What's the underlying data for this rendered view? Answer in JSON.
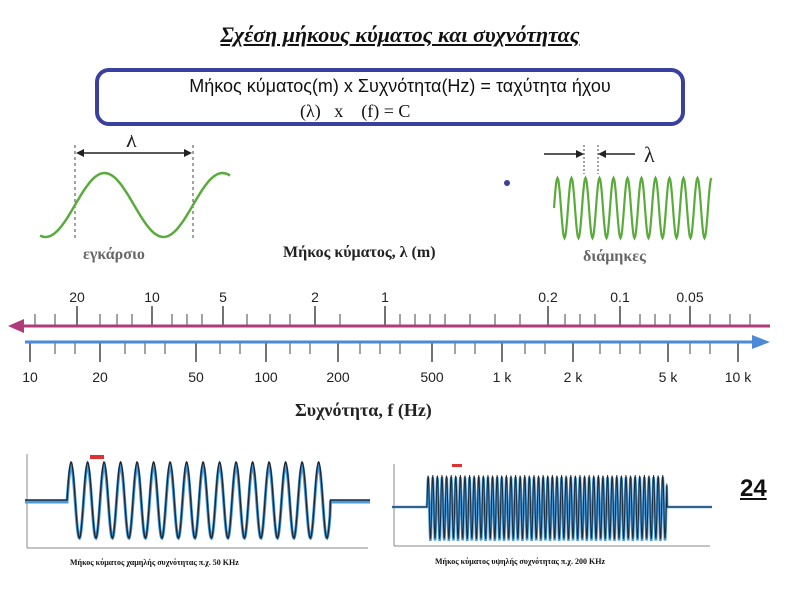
{
  "title": "Σχέση μήκους κύματος και συχνότητας",
  "formula": {
    "line1": "Μήκος κύματος(m) x Συχνότητα(Hz) = ταχύτητα ήχου",
    "line2": "(λ)   x    (f) = C"
  },
  "waves": {
    "transverse_label": "εγκάρσιο",
    "longitudinal_label": "διάμηκες",
    "lambda_symbol": "λ"
  },
  "axes": {
    "wavelength_title": "Μήκος κύματος, λ (m)",
    "frequency_title": "Συχνότητα, f (Hz)",
    "wavelength_ticks": [
      "20",
      "10",
      "5",
      "2",
      "1",
      "0.2",
      "0.1",
      "0.05"
    ],
    "frequency_ticks": [
      "10",
      "20",
      "50",
      "100",
      "200",
      "500",
      "1 k",
      "2 k",
      "5 k",
      "10 k"
    ]
  },
  "signals": {
    "low_caption": "Μήκος κύματος χαμηλής συχνότητας π.χ. 50 KHz",
    "high_caption": "Μήκος κύματος υψηλής συχνότητας π.χ. 200 KHz"
  },
  "page_number": "24",
  "colors": {
    "wave_green": "#5aab3c",
    "wavelength_axis": "#b03a7a",
    "frequency_axis": "#4a8ad8",
    "box_border": "#3a3fa0"
  }
}
